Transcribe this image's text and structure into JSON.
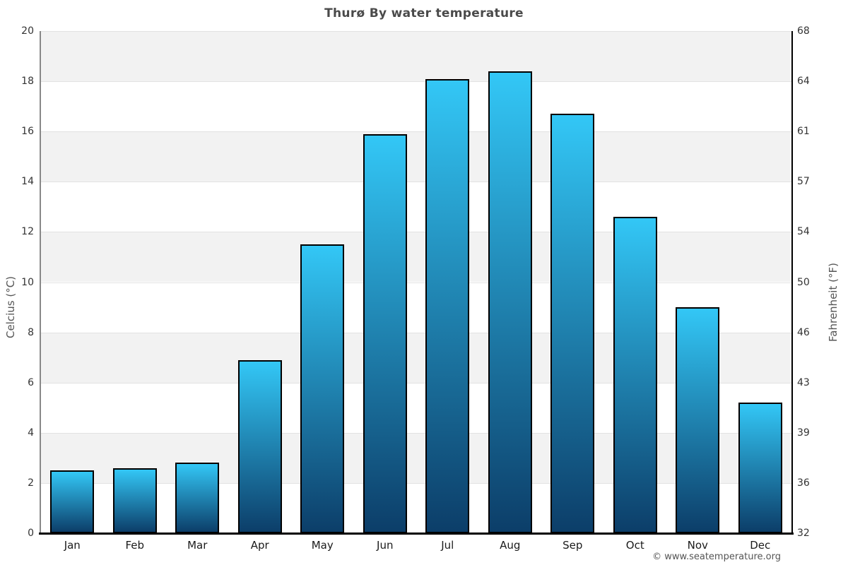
{
  "title": "Thurø By water temperature",
  "footer": {
    "credit": "© www.seatemperature.org"
  },
  "chart_data": {
    "type": "bar",
    "title": "Thurø By water temperature",
    "categories": [
      "Jan",
      "Feb",
      "Mar",
      "Apr",
      "May",
      "Jun",
      "Jul",
      "Aug",
      "Sep",
      "Oct",
      "Nov",
      "Dec"
    ],
    "series": [
      {
        "name": "Water temperature",
        "unit": "°C",
        "values": [
          2.5,
          2.6,
          2.8,
          6.9,
          11.5,
          15.9,
          18.1,
          18.4,
          16.7,
          12.6,
          9.0,
          5.2
        ]
      }
    ],
    "xlabel": "",
    "ylabel_left": "Celcius (°C)",
    "ylabel_right": "Fahrenheit (°F)",
    "ylim": [
      0,
      20
    ],
    "yticks_celsius": [
      0,
      2,
      4,
      6,
      8,
      10,
      12,
      14,
      16,
      18,
      20
    ],
    "yticks_fahrenheit": [
      "32",
      "36",
      "39",
      "43",
      "46",
      "50",
      "54",
      "57",
      "61",
      "64",
      "68"
    ],
    "grid": "horizontal",
    "legend": "none",
    "colors": {
      "band": "#f2f2f2",
      "gridline": "#e2e2e2",
      "bar_gradient_top": "#33c7f6",
      "bar_gradient_bottom": "#0c3e69",
      "bar_border": "#000000",
      "axis_left_line": "#888888",
      "axis_right_line": "#000000",
      "axis_bottom_line": "#000000"
    }
  }
}
